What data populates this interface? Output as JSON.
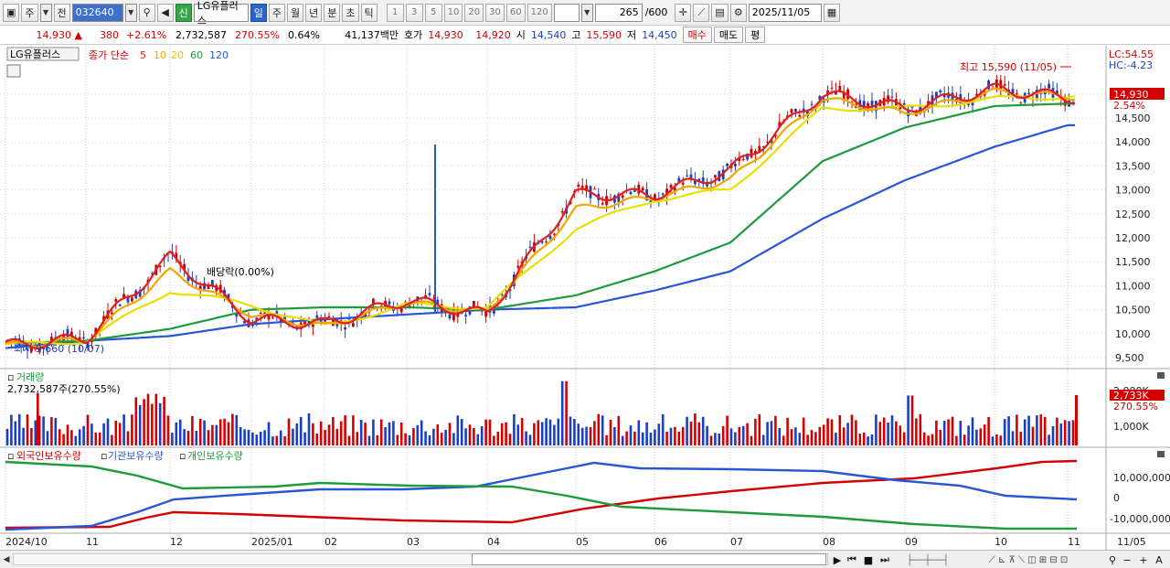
{
  "toolbar": {
    "type_label": "주",
    "type_button": "전",
    "code": "032640",
    "credit_badge": "신",
    "stock_name": "LG유플러스",
    "periods": [
      "일",
      "주",
      "월",
      "년",
      "분",
      "초",
      "틱"
    ],
    "active_period": "일",
    "intervals": [
      "1",
      "3",
      "5",
      "10",
      "20",
      "30",
      "60",
      "120"
    ],
    "count": "265",
    "count_max": "/600",
    "date": "2025/11/05"
  },
  "quote": {
    "price": "14,930",
    "change": "380",
    "change_pct": "+2.61%",
    "volume": "2,732,587",
    "volume_ratio": "270.55%",
    "turnover": "0.64%",
    "amount": "41,137백만",
    "hoga_label": "호가",
    "ask": "14,930",
    "bid": "14,920",
    "open_label": "시",
    "open": "14,540",
    "high_label": "고",
    "high": "15,590",
    "low_label": "저",
    "low": "14,450",
    "buy_button": "매수",
    "sell_button": "매도",
    "eval_button": "평"
  },
  "price_panel": {
    "stock_tag": "LG유플러스",
    "legend_prefix": "종가 단순",
    "ma_labels": [
      "5",
      "10",
      "20",
      "60",
      "120"
    ],
    "ma_colors": [
      "#e02020",
      "#f0a800",
      "#e8e000",
      "#1f9a3c",
      "#2a55d6"
    ],
    "dividend_label": "배당락(0.00%)",
    "high_annotation": "최고 15,590 (11/05)",
    "low_annotation": "최저 9,660 (10/07)",
    "lc_label": "LC:54.55",
    "hc_label": "HC:-4.23",
    "current_price": "14,930",
    "current_pct": "2.54%",
    "y_ticks": [
      "15,000",
      "14,500",
      "14,000",
      "13,500",
      "13,000",
      "12,500",
      "12,000",
      "11,500",
      "11,000",
      "10,500",
      "10,000",
      "9,500"
    ]
  },
  "volume_panel": {
    "title": "거래량",
    "summary": "2,732,587주(270.55%)",
    "y_ticks": [
      "2,000K",
      "1,000K"
    ],
    "current_value": "2,733K",
    "current_pct": "270.55%"
  },
  "holder_panel": {
    "legend": [
      "외국인보유수량",
      "기관보유수량",
      "개인보유수량"
    ],
    "legend_colors": [
      "#d40000",
      "#2a55d6",
      "#1f9a3c"
    ],
    "y_ticks": [
      "10,000,000",
      "0",
      "-10,000,000"
    ]
  },
  "x_axis": {
    "labels": [
      "2024/10",
      "11",
      "12",
      "2025/01",
      "02",
      "03",
      "04",
      "05",
      "06",
      "07",
      "08",
      "09",
      "10",
      "11"
    ],
    "right_label": "11/05"
  },
  "chart_data": {
    "type": "line",
    "x": [
      "2024-10",
      "2024-11",
      "2024-12",
      "2025-01",
      "2025-02",
      "2025-03",
      "2025-04",
      "2025-05",
      "2025-06",
      "2025-07",
      "2025-08",
      "2025-09",
      "2025-10",
      "2025-11"
    ],
    "series": [
      {
        "name": "5",
        "values": [
          9750,
          9900,
          11600,
          10300,
          10200,
          10700,
          10400,
          12900,
          12900,
          13400,
          15000,
          14700,
          15100,
          14930
        ]
      },
      {
        "name": "10",
        "values": [
          9750,
          9870,
          11300,
          10400,
          10150,
          10650,
          10450,
          12600,
          12850,
          13200,
          14900,
          14600,
          15050,
          14950
        ]
      },
      {
        "name": "20",
        "values": [
          9760,
          9850,
          10900,
          10600,
          10150,
          10600,
          10550,
          12200,
          12800,
          13000,
          14700,
          14700,
          14900,
          14950
        ]
      },
      {
        "name": "60",
        "values": [
          9800,
          9850,
          10100,
          10500,
          10550,
          10550,
          10500,
          10800,
          11300,
          11900,
          13600,
          14300,
          14750,
          14800
        ]
      },
      {
        "name": "120",
        "values": [
          9700,
          9850,
          9950,
          10200,
          10300,
          10400,
          10500,
          10550,
          10900,
          11300,
          12400,
          13200,
          13900,
          14350
        ]
      }
    ],
    "volume_max_k": 2733
  }
}
